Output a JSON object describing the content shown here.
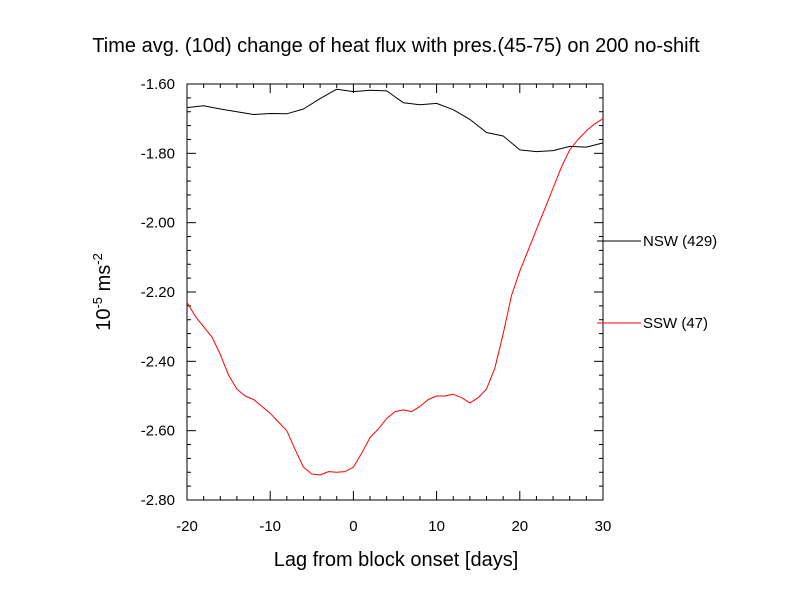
{
  "chart_data": {
    "type": "line",
    "title": "Time avg. (10d) change of heat flux with pres.(45-75) on 200 no-shift",
    "xlabel": "Lag from block onset [days]",
    "ylabel": {
      "base": "10",
      "base_exp": "-5",
      "unit": " ms",
      "unit_exp": "-2"
    },
    "xlim": [
      -20,
      30
    ],
    "ylim": [
      -2.8,
      -1.6
    ],
    "x_ticks": [
      -20,
      -10,
      0,
      10,
      20,
      30
    ],
    "x_tick_labels": [
      "-20",
      "-10",
      "0",
      "10",
      "20",
      "30"
    ],
    "y_ticks": [
      -1.6,
      -1.8,
      -2.0,
      -2.2,
      -2.4,
      -2.6,
      -2.8
    ],
    "y_tick_labels": [
      "-1.60",
      "-1.80",
      "-2.00",
      "-2.20",
      "-2.40",
      "-2.60",
      "-2.80"
    ],
    "grid": false,
    "legend_position": "right",
    "series": [
      {
        "name": "NSW (429)",
        "color": "#000000",
        "x": [
          -20,
          -18,
          -16,
          -14,
          -12,
          -10,
          -8,
          -6,
          -4,
          -2,
          0,
          2,
          4,
          6,
          8,
          10,
          12,
          14,
          16,
          18,
          20,
          22,
          24,
          26,
          28,
          30
        ],
        "y": [
          -1.668,
          -1.663,
          -1.672,
          -1.68,
          -1.688,
          -1.685,
          -1.686,
          -1.672,
          -1.642,
          -1.615,
          -1.622,
          -1.618,
          -1.62,
          -1.654,
          -1.66,
          -1.656,
          -1.674,
          -1.702,
          -1.74,
          -1.75,
          -1.79,
          -1.795,
          -1.792,
          -1.78,
          -1.782,
          -1.77
        ]
      },
      {
        "name": "SSW (47)",
        "color": "#ff0000",
        "x": [
          -20,
          -19,
          -18,
          -17,
          -16,
          -15,
          -14,
          -13,
          -12,
          -11,
          -10,
          -9,
          -8,
          -7,
          -6,
          -5,
          -4,
          -3,
          -2,
          -1,
          0,
          1,
          2,
          3,
          4,
          5,
          6,
          7,
          8,
          9,
          10,
          11,
          12,
          13,
          14,
          15,
          16,
          17,
          18,
          19,
          20,
          21,
          22,
          23,
          24,
          25,
          26,
          27,
          28,
          29,
          30
        ],
        "y": [
          -2.23,
          -2.27,
          -2.3,
          -2.33,
          -2.38,
          -2.44,
          -2.48,
          -2.5,
          -2.51,
          -2.53,
          -2.55,
          -2.575,
          -2.6,
          -2.655,
          -2.705,
          -2.725,
          -2.728,
          -2.718,
          -2.72,
          -2.718,
          -2.705,
          -2.665,
          -2.62,
          -2.595,
          -2.565,
          -2.545,
          -2.54,
          -2.545,
          -2.53,
          -2.51,
          -2.5,
          -2.5,
          -2.495,
          -2.505,
          -2.52,
          -2.505,
          -2.48,
          -2.42,
          -2.32,
          -2.21,
          -2.14,
          -2.08,
          -2.02,
          -1.96,
          -1.9,
          -1.84,
          -1.79,
          -1.76,
          -1.735,
          -1.715,
          -1.7
        ]
      }
    ]
  }
}
